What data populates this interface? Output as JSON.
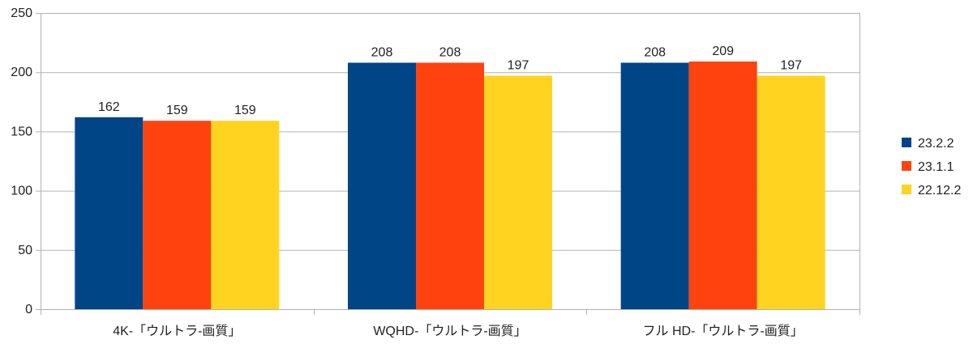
{
  "chart_data": {
    "type": "bar",
    "categories": [
      "4K-「ウルトラ-画質」",
      "WQHD-「ウルトラ-画質」",
      "フル HD-「ウルトラ-画質」"
    ],
    "series": [
      {
        "name": "23.2.2",
        "values": [
          162,
          208,
          208
        ],
        "color": "#004586"
      },
      {
        "name": "23.1.1",
        "values": [
          159,
          208,
          209
        ],
        "color": "#ff420e"
      },
      {
        "name": "22.12.2",
        "values": [
          159,
          197,
          197
        ],
        "color": "#ffd320"
      }
    ],
    "ylim": [
      0,
      250
    ],
    "yticks": [
      0,
      50,
      100,
      150,
      200,
      250
    ],
    "grid": true,
    "legend": "right",
    "data_labels": true
  }
}
